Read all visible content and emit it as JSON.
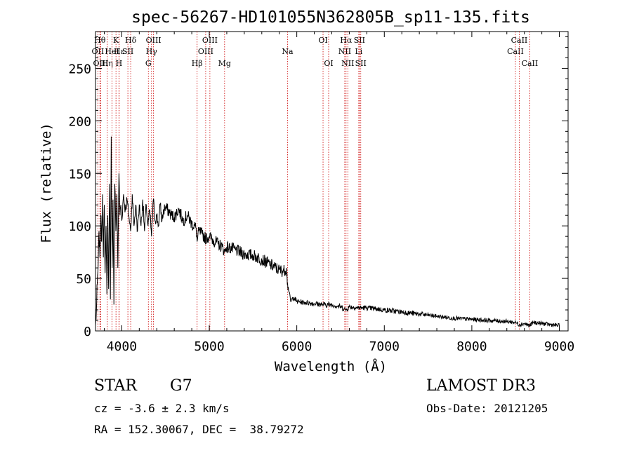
{
  "chart_data": {
    "type": "line",
    "title": "spec-56267-HD101055N362805B_sp11-135.fits",
    "xlabel": "Wavelength (Å)",
    "ylabel": "Flux (relative)",
    "xlim": [
      3700,
      9100
    ],
    "ylim": [
      0,
      285
    ],
    "x_ticks": [
      4000,
      5000,
      6000,
      7000,
      8000,
      9000
    ],
    "y_ticks": [
      0,
      50,
      100,
      150,
      200,
      250
    ],
    "grid": false,
    "series": [
      {
        "name": "flux",
        "x": [
          3700,
          3710,
          3720,
          3730,
          3740,
          3750,
          3760,
          3770,
          3780,
          3790,
          3800,
          3810,
          3820,
          3830,
          3840,
          3850,
          3860,
          3870,
          3880,
          3890,
          3900,
          3910,
          3920,
          3933,
          3945,
          3955,
          3968,
          3980,
          3990,
          4000,
          4020,
          4040,
          4060,
          4080,
          4101,
          4120,
          4140,
          4160,
          4180,
          4200,
          4220,
          4240,
          4260,
          4280,
          4300,
          4320,
          4340,
          4360,
          4380,
          4400,
          4420,
          4440,
          4460,
          4480,
          4500,
          4550,
          4600,
          4650,
          4700,
          4750,
          4800,
          4850,
          4861,
          4880,
          4920,
          4960,
          5000,
          5050,
          5100,
          5150,
          5175,
          5200,
          5300,
          5400,
          5500,
          5600,
          5700,
          5800,
          5850,
          5880,
          5895,
          5910,
          5930,
          5960,
          6000,
          6100,
          6200,
          6300,
          6400,
          6500,
          6563,
          6600,
          6700,
          6800,
          6900,
          7000,
          7200,
          7400,
          7600,
          7800,
          8000,
          8200,
          8400,
          8500,
          8542,
          8600,
          8662,
          8700,
          8800,
          8900,
          9000
        ],
        "y": [
          5,
          18,
          45,
          60,
          95,
          70,
          110,
          85,
          130,
          70,
          120,
          55,
          100,
          35,
          110,
          40,
          140,
          30,
          185,
          60,
          125,
          25,
          140,
          95,
          130,
          60,
          150,
          110,
          120,
          105,
          130,
          115,
          125,
          110,
          95,
          130,
          100,
          120,
          95,
          120,
          100,
          125,
          95,
          120,
          100,
          115,
          90,
          125,
          105,
          110,
          100,
          120,
          105,
          115,
          118,
          112,
          108,
          116,
          105,
          110,
          102,
          98,
          85,
          95,
          92,
          88,
          90,
          86,
          83,
          80,
          75,
          80,
          77,
          73,
          72,
          68,
          63,
          58,
          57,
          60,
          45,
          38,
          28,
          32,
          28,
          27,
          26,
          25,
          25,
          23,
          20,
          23,
          22,
          22,
          21,
          20,
          18,
          16,
          14,
          12,
          11,
          10,
          9,
          8,
          6,
          7,
          5,
          8,
          7,
          6,
          5
        ]
      }
    ],
    "line_colors": {
      "spectrum": "#000000",
      "marker": "#cc0000"
    },
    "lines": [
      {
        "label": "OII",
        "wl": 3727,
        "row": 1
      },
      {
        "label": "Hθ",
        "wl": 3750,
        "row": 0
      },
      {
        "label": "OIII",
        "wl": 3760,
        "row": 2
      },
      {
        "label": "Hη",
        "wl": 3835,
        "row": 2
      },
      {
        "label": "HeI",
        "wl": 3889,
        "row": 1
      },
      {
        "label": "K",
        "wl": 3934,
        "row": 0
      },
      {
        "label": "H",
        "wl": 3968,
        "row": 2
      },
      {
        "label": "Hε",
        "wl": 3970,
        "row": 1
      },
      {
        "label": "SII",
        "wl": 4070,
        "row": 1
      },
      {
        "label": "Hδ",
        "wl": 4102,
        "row": 0
      },
      {
        "label": "G",
        "wl": 4304,
        "row": 2
      },
      {
        "label": "Hγ",
        "wl": 4340,
        "row": 1
      },
      {
        "label": "OIII",
        "wl": 4363,
        "row": 0
      },
      {
        "label": "Hβ",
        "wl": 4861,
        "row": 2
      },
      {
        "label": "OIII",
        "wl": 4959,
        "row": 1
      },
      {
        "label": "OIII",
        "wl": 5007,
        "row": 0
      },
      {
        "label": "Mg",
        "wl": 5175,
        "row": 2
      },
      {
        "label": "Na",
        "wl": 5894,
        "row": 1
      },
      {
        "label": "OI",
        "wl": 6300,
        "row": 0
      },
      {
        "label": "OI",
        "wl": 6364,
        "row": 2
      },
      {
        "label": "NII",
        "wl": 6548,
        "row": 1
      },
      {
        "label": "Hα",
        "wl": 6563,
        "row": 0
      },
      {
        "label": "NII",
        "wl": 6583,
        "row": 2
      },
      {
        "label": "Li",
        "wl": 6708,
        "row": 1
      },
      {
        "label": "SII",
        "wl": 6716,
        "row": 0
      },
      {
        "label": "SII",
        "wl": 6731,
        "row": 2
      },
      {
        "label": "CaII",
        "wl": 8498,
        "row": 1
      },
      {
        "label": "CaII",
        "wl": 8542,
        "row": 0
      },
      {
        "label": "CaII",
        "wl": 8662,
        "row": 2
      }
    ]
  },
  "info": {
    "object_class": "STAR",
    "subclass": "G7",
    "survey": "LAMOST DR3",
    "redshift": "cz = -3.6 ± 2.3 km/s",
    "obs_date": "Obs-Date: 20121205",
    "coords": "RA = 152.30067, DEC =  38.79272"
  }
}
